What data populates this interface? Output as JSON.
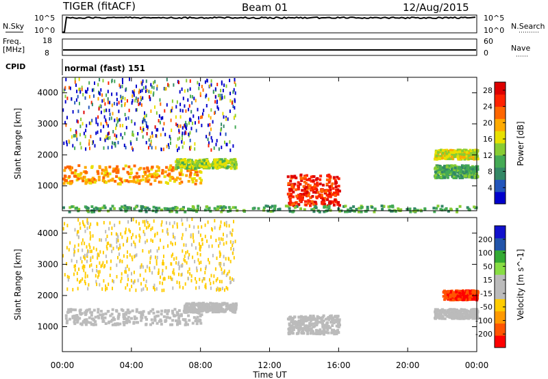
{
  "header": {
    "station": "TIGER (fitACF)",
    "beam": "Beam 01",
    "date": "12/Aug/2015"
  },
  "side_labels": {
    "nsky": "N.Sky",
    "nsearch": "N.Search",
    "freq_top": "Freq.",
    "freq_unit": "[MHz]",
    "nave": "Nave",
    "cpid": "CPID",
    "cpid_value": "normal (fast) 151",
    "nsky_ticks": [
      "10^5",
      "10^0"
    ],
    "nsearch_ticks": [
      "10^5",
      "10^0"
    ],
    "freq_ticks": [
      "18",
      "8"
    ],
    "nave_ticks": [
      "60",
      "0"
    ]
  },
  "colors": {
    "power_scale": [
      "#0000cc",
      "#2255bb",
      "#338866",
      "#44aa55",
      "#88cc33",
      "#e8e000",
      "#ffaa00",
      "#ff6600",
      "#ff2200",
      "#dd0000"
    ],
    "velocity_scale": [
      "#ff0000",
      "#ff5500",
      "#ff9900",
      "#ffcc00",
      "#bbbbbb",
      "#bbbbbb",
      "#88dd44",
      "#33aa33",
      "#2255aa",
      "#1111cc"
    ]
  },
  "chart_data": [
    {
      "type": "heatmap",
      "title": "Power",
      "xlabel": "Time UT",
      "ylabel": "Slant Range [km]",
      "xlim": [
        0,
        24
      ],
      "ylim": [
        200,
        4500
      ],
      "x_ticks": [
        "00:00",
        "04:00",
        "08:00",
        "12:00",
        "16:00",
        "20:00",
        "00:00"
      ],
      "y_ticks": [
        1000,
        2000,
        3000,
        4000
      ],
      "colorbar": {
        "label": "Power [dB]",
        "ticks": [
          4,
          8,
          12,
          16,
          20,
          24,
          28
        ],
        "range": [
          0,
          30
        ]
      },
      "features": [
        {
          "name": "band 1400 km",
          "t": [
            0,
            8
          ],
          "range_km": [
            1100,
            1700
          ],
          "value": 20
        },
        {
          "name": "band 1800 km",
          "t": [
            6.5,
            10
          ],
          "range_km": [
            1600,
            1900
          ],
          "value": 14
        },
        {
          "name": "scatter",
          "t": [
            0,
            10
          ],
          "range_km": [
            2200,
            4500
          ],
          "value": 8
        },
        {
          "name": "cluster 1000 km",
          "t": [
            13,
            16
          ],
          "range_km": [
            400,
            1400
          ],
          "value": 26
        },
        {
          "name": "ground band",
          "t": [
            0,
            24
          ],
          "range_km": [
            200,
            400
          ],
          "value": 10
        },
        {
          "name": "late band 1500 km",
          "t": [
            21.5,
            24
          ],
          "range_km": [
            1300,
            1700
          ],
          "value": 10
        },
        {
          "name": "late band 2000 km",
          "t": [
            21.5,
            24
          ],
          "range_km": [
            1900,
            2200
          ],
          "value": 16
        }
      ]
    },
    {
      "type": "heatmap",
      "title": "Velocity",
      "xlabel": "Time UT",
      "ylabel": "Slant Range [km]",
      "xlim": [
        0,
        24
      ],
      "ylim": [
        200,
        4500
      ],
      "x_ticks": [
        "00:00",
        "04:00",
        "08:00",
        "12:00",
        "16:00",
        "20:00",
        "00:00"
      ],
      "y_ticks": [
        1000,
        2000,
        3000,
        4000
      ],
      "colorbar": {
        "label": "Velocity [m s^-1]",
        "ticks": [
          200,
          100,
          50,
          15,
          -15,
          -50,
          -100,
          -200
        ],
        "range": [
          -250,
          250
        ]
      },
      "features": [
        {
          "name": "grey band 1300 km",
          "t": [
            0,
            8
          ],
          "range_km": [
            1100,
            1600
          ],
          "value": 0
        },
        {
          "name": "grey band 1700 km",
          "t": [
            7,
            10
          ],
          "range_km": [
            1500,
            1800
          ],
          "value": 5
        },
        {
          "name": "scatter",
          "t": [
            0,
            10
          ],
          "range_km": [
            2200,
            4500
          ],
          "value": -60
        },
        {
          "name": "grey cluster",
          "t": [
            13,
            16
          ],
          "range_km": [
            800,
            1400
          ],
          "value": 0
        },
        {
          "name": "late red band",
          "t": [
            22,
            24
          ],
          "range_km": [
            1900,
            2200
          ],
          "value": -200
        },
        {
          "name": "late grey band",
          "t": [
            21.5,
            24
          ],
          "range_km": [
            1300,
            1600
          ],
          "value": 0
        }
      ]
    }
  ]
}
